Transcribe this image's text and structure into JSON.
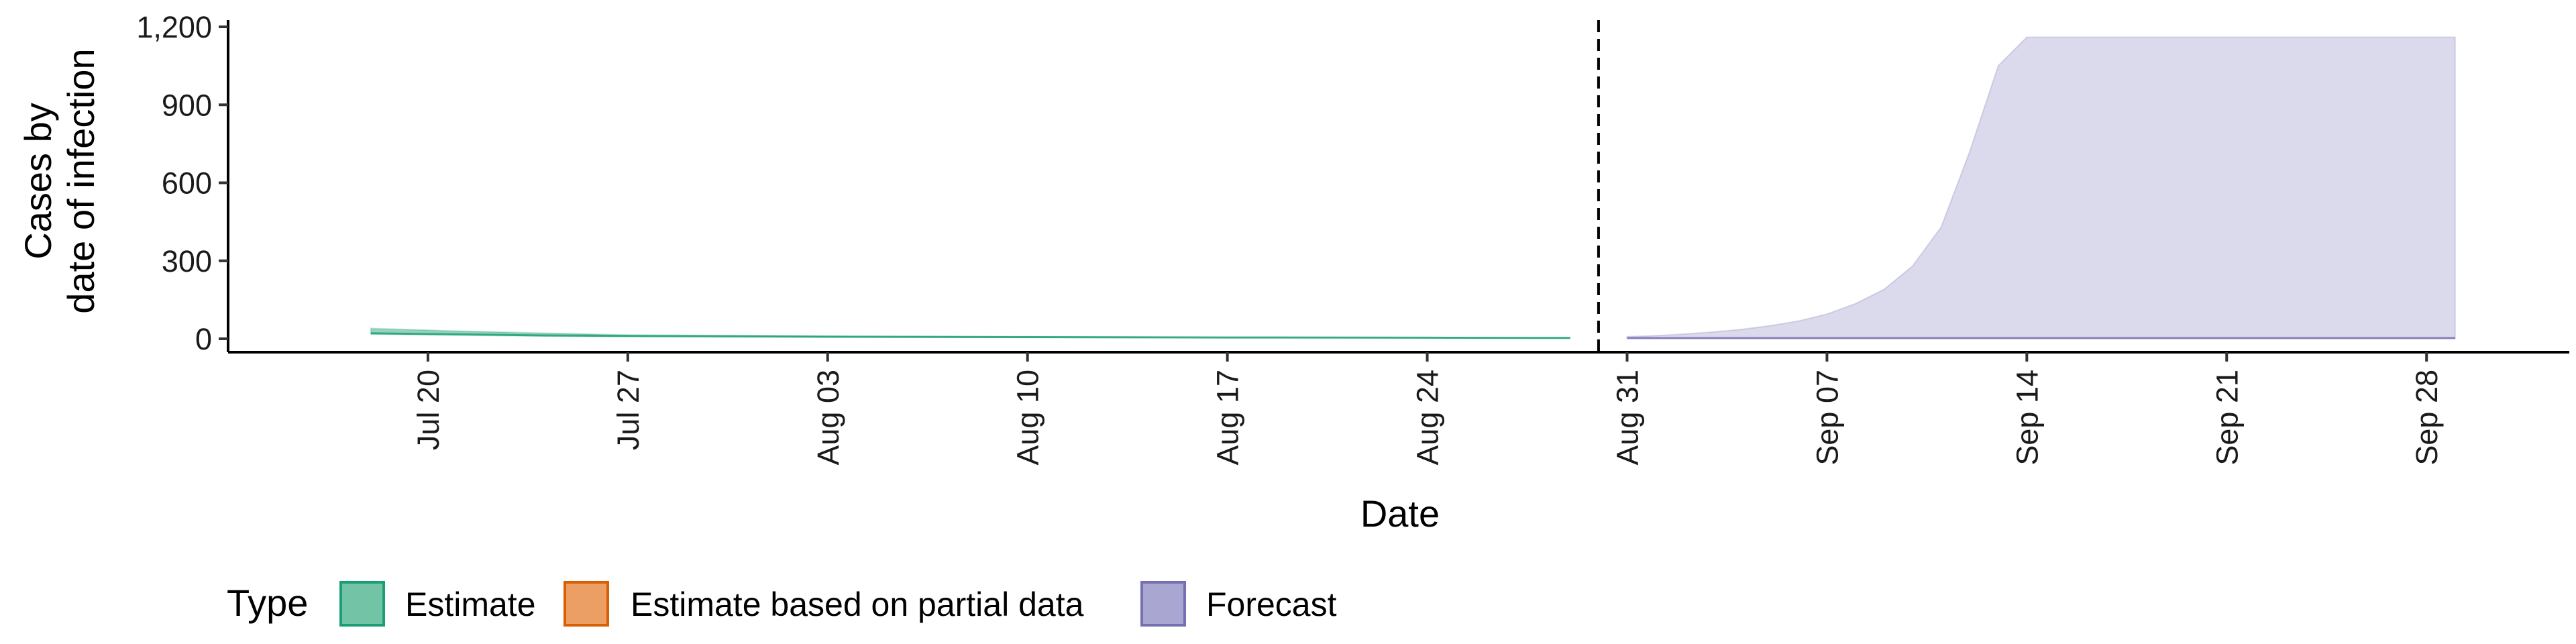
{
  "chart_data": {
    "type": "area",
    "title": "",
    "xlabel": "Date",
    "ylabel_lines": [
      "Cases by",
      "date of infection"
    ],
    "ylim": [
      0,
      1200
    ],
    "yticks": [
      0,
      300,
      600,
      900,
      1200
    ],
    "ytick_labels": [
      "0",
      "300",
      "600",
      "900",
      "1,200"
    ],
    "xlim": [
      "2020-07-13",
      "2020-10-03"
    ],
    "xticks": [
      "2020-07-20",
      "2020-07-27",
      "2020-08-03",
      "2020-08-10",
      "2020-08-17",
      "2020-08-24",
      "2020-08-31",
      "2020-09-07",
      "2020-09-14",
      "2020-09-21",
      "2020-09-28"
    ],
    "xtick_labels": [
      "Jul 20",
      "Jul 27",
      "Aug 03",
      "Aug 10",
      "Aug 17",
      "Aug 24",
      "Aug 31",
      "Sep 07",
      "Sep 14",
      "Sep 21",
      "Sep 28"
    ],
    "vline_date": "2020-08-30",
    "grid": false,
    "legend": {
      "title": "Type",
      "position": "bottom",
      "entries": [
        {
          "label": "Estimate",
          "fill": "#73c3a6",
          "stroke": "#1b9e77"
        },
        {
          "label": "Estimate based on partial data",
          "fill": "#eb9f65",
          "stroke": "#d95f02"
        },
        {
          "label": "Forecast",
          "fill": "#a9a6d1",
          "stroke": "#7570b3"
        }
      ]
    },
    "series": [
      {
        "name": "Estimate",
        "color": "#1b9e77",
        "x": [
          "2020-07-18",
          "2020-07-21",
          "2020-07-24",
          "2020-07-27",
          "2020-08-03",
          "2020-08-10",
          "2020-08-17",
          "2020-08-24",
          "2020-08-29"
        ],
        "lower": [
          18,
          14,
          10,
          8,
          6,
          5,
          4,
          3,
          2
        ],
        "upper": [
          40,
          30,
          22,
          15,
          10,
          8,
          6,
          5,
          4
        ]
      },
      {
        "name": "Forecast",
        "color": "#7570b3",
        "x": [
          "2020-08-31",
          "2020-09-01",
          "2020-09-02",
          "2020-09-03",
          "2020-09-04",
          "2020-09-05",
          "2020-09-06",
          "2020-09-07",
          "2020-09-08",
          "2020-09-09",
          "2020-09-10",
          "2020-09-11",
          "2020-09-12",
          "2020-09-13",
          "2020-09-14",
          "2020-09-21",
          "2020-09-28",
          "2020-09-29"
        ],
        "lower": [
          0,
          0,
          0,
          0,
          0,
          0,
          0,
          0,
          0,
          0,
          0,
          0,
          0,
          0,
          0,
          0,
          0,
          0
        ],
        "upper": [
          8,
          12,
          18,
          26,
          36,
          50,
          68,
          95,
          135,
          190,
          280,
          430,
          720,
          1050,
          1160,
          1160,
          1160,
          1160
        ]
      }
    ]
  }
}
